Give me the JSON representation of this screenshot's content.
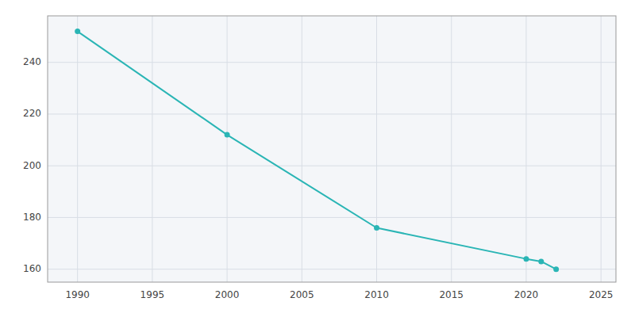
{
  "chart_data": {
    "type": "line",
    "x": [
      1990,
      2000,
      2010,
      2020,
      2021,
      2022
    ],
    "values": [
      252,
      212,
      176,
      164,
      163,
      160
    ],
    "color": "#2ab5b5",
    "marker": "circle",
    "xlim": [
      1988,
      2026
    ],
    "ylim": [
      155,
      258
    ],
    "xticks": [
      1990,
      1995,
      2000,
      2005,
      2010,
      2015,
      2020,
      2025
    ],
    "yticks": [
      160,
      180,
      200,
      220,
      240
    ],
    "grid": true
  }
}
